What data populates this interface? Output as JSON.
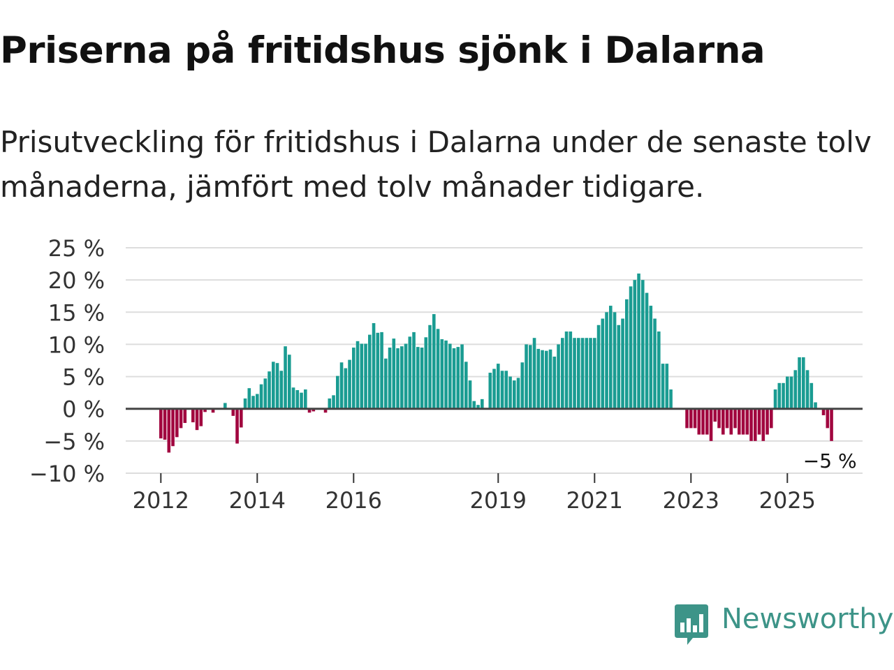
{
  "title": "Priserna på fritidshus sjönk i Dalarna",
  "subtitle": "Prisutveckling för fritidshus i Dalarna under de senaste tolv månaderna, jämfört med tolv månader tidigare.",
  "brand": {
    "name": "Newsworthy",
    "color": "#3d9488"
  },
  "colors": {
    "positive": "#1a9c92",
    "negative": "#a1063f",
    "grid": "#dddddd",
    "zero": "#444444"
  },
  "chart_data": {
    "type": "bar",
    "title": "Priserna på fritidshus sjönk i Dalarna",
    "xlabel": "",
    "ylabel": "",
    "ylim": [
      -10,
      25
    ],
    "y_ticks": [
      25,
      20,
      15,
      10,
      5,
      0,
      -5,
      -10
    ],
    "y_tick_labels": [
      "25 %",
      "20 %",
      "15 %",
      "10 %",
      "5 %",
      "0 %",
      "−5 %",
      "−10 %"
    ],
    "x_tick_labels": [
      "2012",
      "2014",
      "2016",
      "2019",
      "2021",
      "2023",
      "2025"
    ],
    "x_tick_positions": [
      "2012-01",
      "2014-01",
      "2016-01",
      "2019-01",
      "2021-01",
      "2023-01",
      "2025-01"
    ],
    "grid": true,
    "series": [
      {
        "start": "2012-01",
        "frequency": "monthly",
        "values": [
          -4.6,
          -4.8,
          -6.8,
          -5.8,
          -4.4,
          -3.0,
          -2.2,
          null,
          -2.1,
          -3.3,
          -2.7,
          -0.5,
          null,
          -0.6,
          null,
          null,
          0.9,
          null,
          -1.1,
          -5.4,
          -2.9,
          1.6,
          3.2,
          2.0,
          2.3,
          3.8,
          4.7,
          5.8,
          7.3,
          7.1,
          5.9,
          9.7,
          8.4,
          3.3,
          2.9,
          2.5,
          3.0,
          -0.6,
          -0.4,
          null,
          null,
          -0.6,
          1.6,
          2.1,
          5.1,
          7.2,
          6.3,
          7.6,
          9.5,
          10.5,
          10.1,
          10.1,
          11.5,
          13.3,
          11.8,
          11.9,
          7.8,
          9.5,
          10.9,
          9.4,
          9.7,
          10.1,
          11.2,
          11.9,
          9.6,
          9.5,
          11.1,
          13.0,
          14.7,
          12.4,
          10.8,
          10.6,
          10.1,
          9.4,
          9.6,
          10.0,
          7.3,
          4.4,
          1.2,
          0.6,
          1.5,
          null,
          5.6,
          6.2,
          7.0,
          5.9,
          5.9,
          5.0,
          4.4,
          4.8,
          7.2,
          10.0,
          9.9,
          11.0,
          9.3,
          9.1,
          9.0,
          9.2,
          8.1,
          10.0,
          11.0,
          12.0,
          12.0,
          11.0,
          11.0,
          11.0,
          11.0,
          11.0,
          11.0,
          13.0,
          14.0,
          15.0,
          16.0,
          15.0,
          13.0,
          14.0,
          17.0,
          19.0,
          20.0,
          21.0,
          20.0,
          18.0,
          16.0,
          14.0,
          12.0,
          7.0,
          7.0,
          3.0,
          null,
          null,
          null,
          -3.0,
          -3.0,
          -3.0,
          -4.0,
          -4.0,
          -4.0,
          -5.0,
          -2.0,
          -3.0,
          -4.0,
          -3.0,
          -4.0,
          -3.0,
          -4.0,
          -4.0,
          -4.0,
          -5.0,
          -5.0,
          -4.0,
          -5.0,
          -4.0,
          -3.0,
          3.0,
          4.0,
          4.0,
          5.0,
          5.0,
          6.0,
          8.0,
          8.0,
          6.0,
          4.0,
          1.0,
          null,
          -1.0,
          -3.0,
          -5.0
        ]
      }
    ],
    "annotations": [
      {
        "date": "2025-12",
        "text": "−5 %"
      }
    ]
  }
}
